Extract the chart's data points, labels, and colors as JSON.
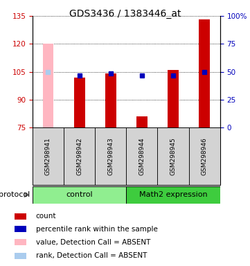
{
  "title": "GDS3436 / 1383446_at",
  "samples": [
    "GSM298941",
    "GSM298942",
    "GSM298943",
    "GSM298944",
    "GSM298945",
    "GSM298946"
  ],
  "red_bars": [
    null,
    102.0,
    104.0,
    81.0,
    106.0,
    133.0
  ],
  "pink_bars": [
    120.0,
    null,
    null,
    null,
    null,
    null
  ],
  "blue_dots_left": [
    null,
    103.0,
    104.0,
    103.0,
    103.0,
    105.0
  ],
  "lightblue_dots_left": [
    105.0,
    null,
    null,
    null,
    null,
    null
  ],
  "ylim_left": [
    75,
    135
  ],
  "ylim_right": [
    0,
    100
  ],
  "yticks_left": [
    75,
    90,
    105,
    120,
    135
  ],
  "yticks_right": [
    0,
    25,
    50,
    75,
    100
  ],
  "ytick_right_labels": [
    "0",
    "25",
    "50",
    "75",
    "100%"
  ],
  "bar_bottom": 75,
  "bar_color_red": "#CC0000",
  "bar_color_pink": "#FFB6C1",
  "dot_color_blue": "#0000BB",
  "dot_color_lightblue": "#AACCEE",
  "axis_color_left": "#CC0000",
  "axis_color_right": "#0000BB",
  "title_fontsize": 10,
  "bar_width": 0.35,
  "legend_items": [
    {
      "color": "#CC0000",
      "label": "count"
    },
    {
      "color": "#0000BB",
      "label": "percentile rank within the sample"
    },
    {
      "color": "#FFB6C1",
      "label": "value, Detection Call = ABSENT"
    },
    {
      "color": "#AACCEE",
      "label": "rank, Detection Call = ABSENT"
    }
  ],
  "group_control": {
    "label": "control",
    "color": "#90EE90"
  },
  "group_math2": {
    "label": "Math2 expression",
    "color": "#3ECC3E"
  },
  "protocol_label": "protocol"
}
